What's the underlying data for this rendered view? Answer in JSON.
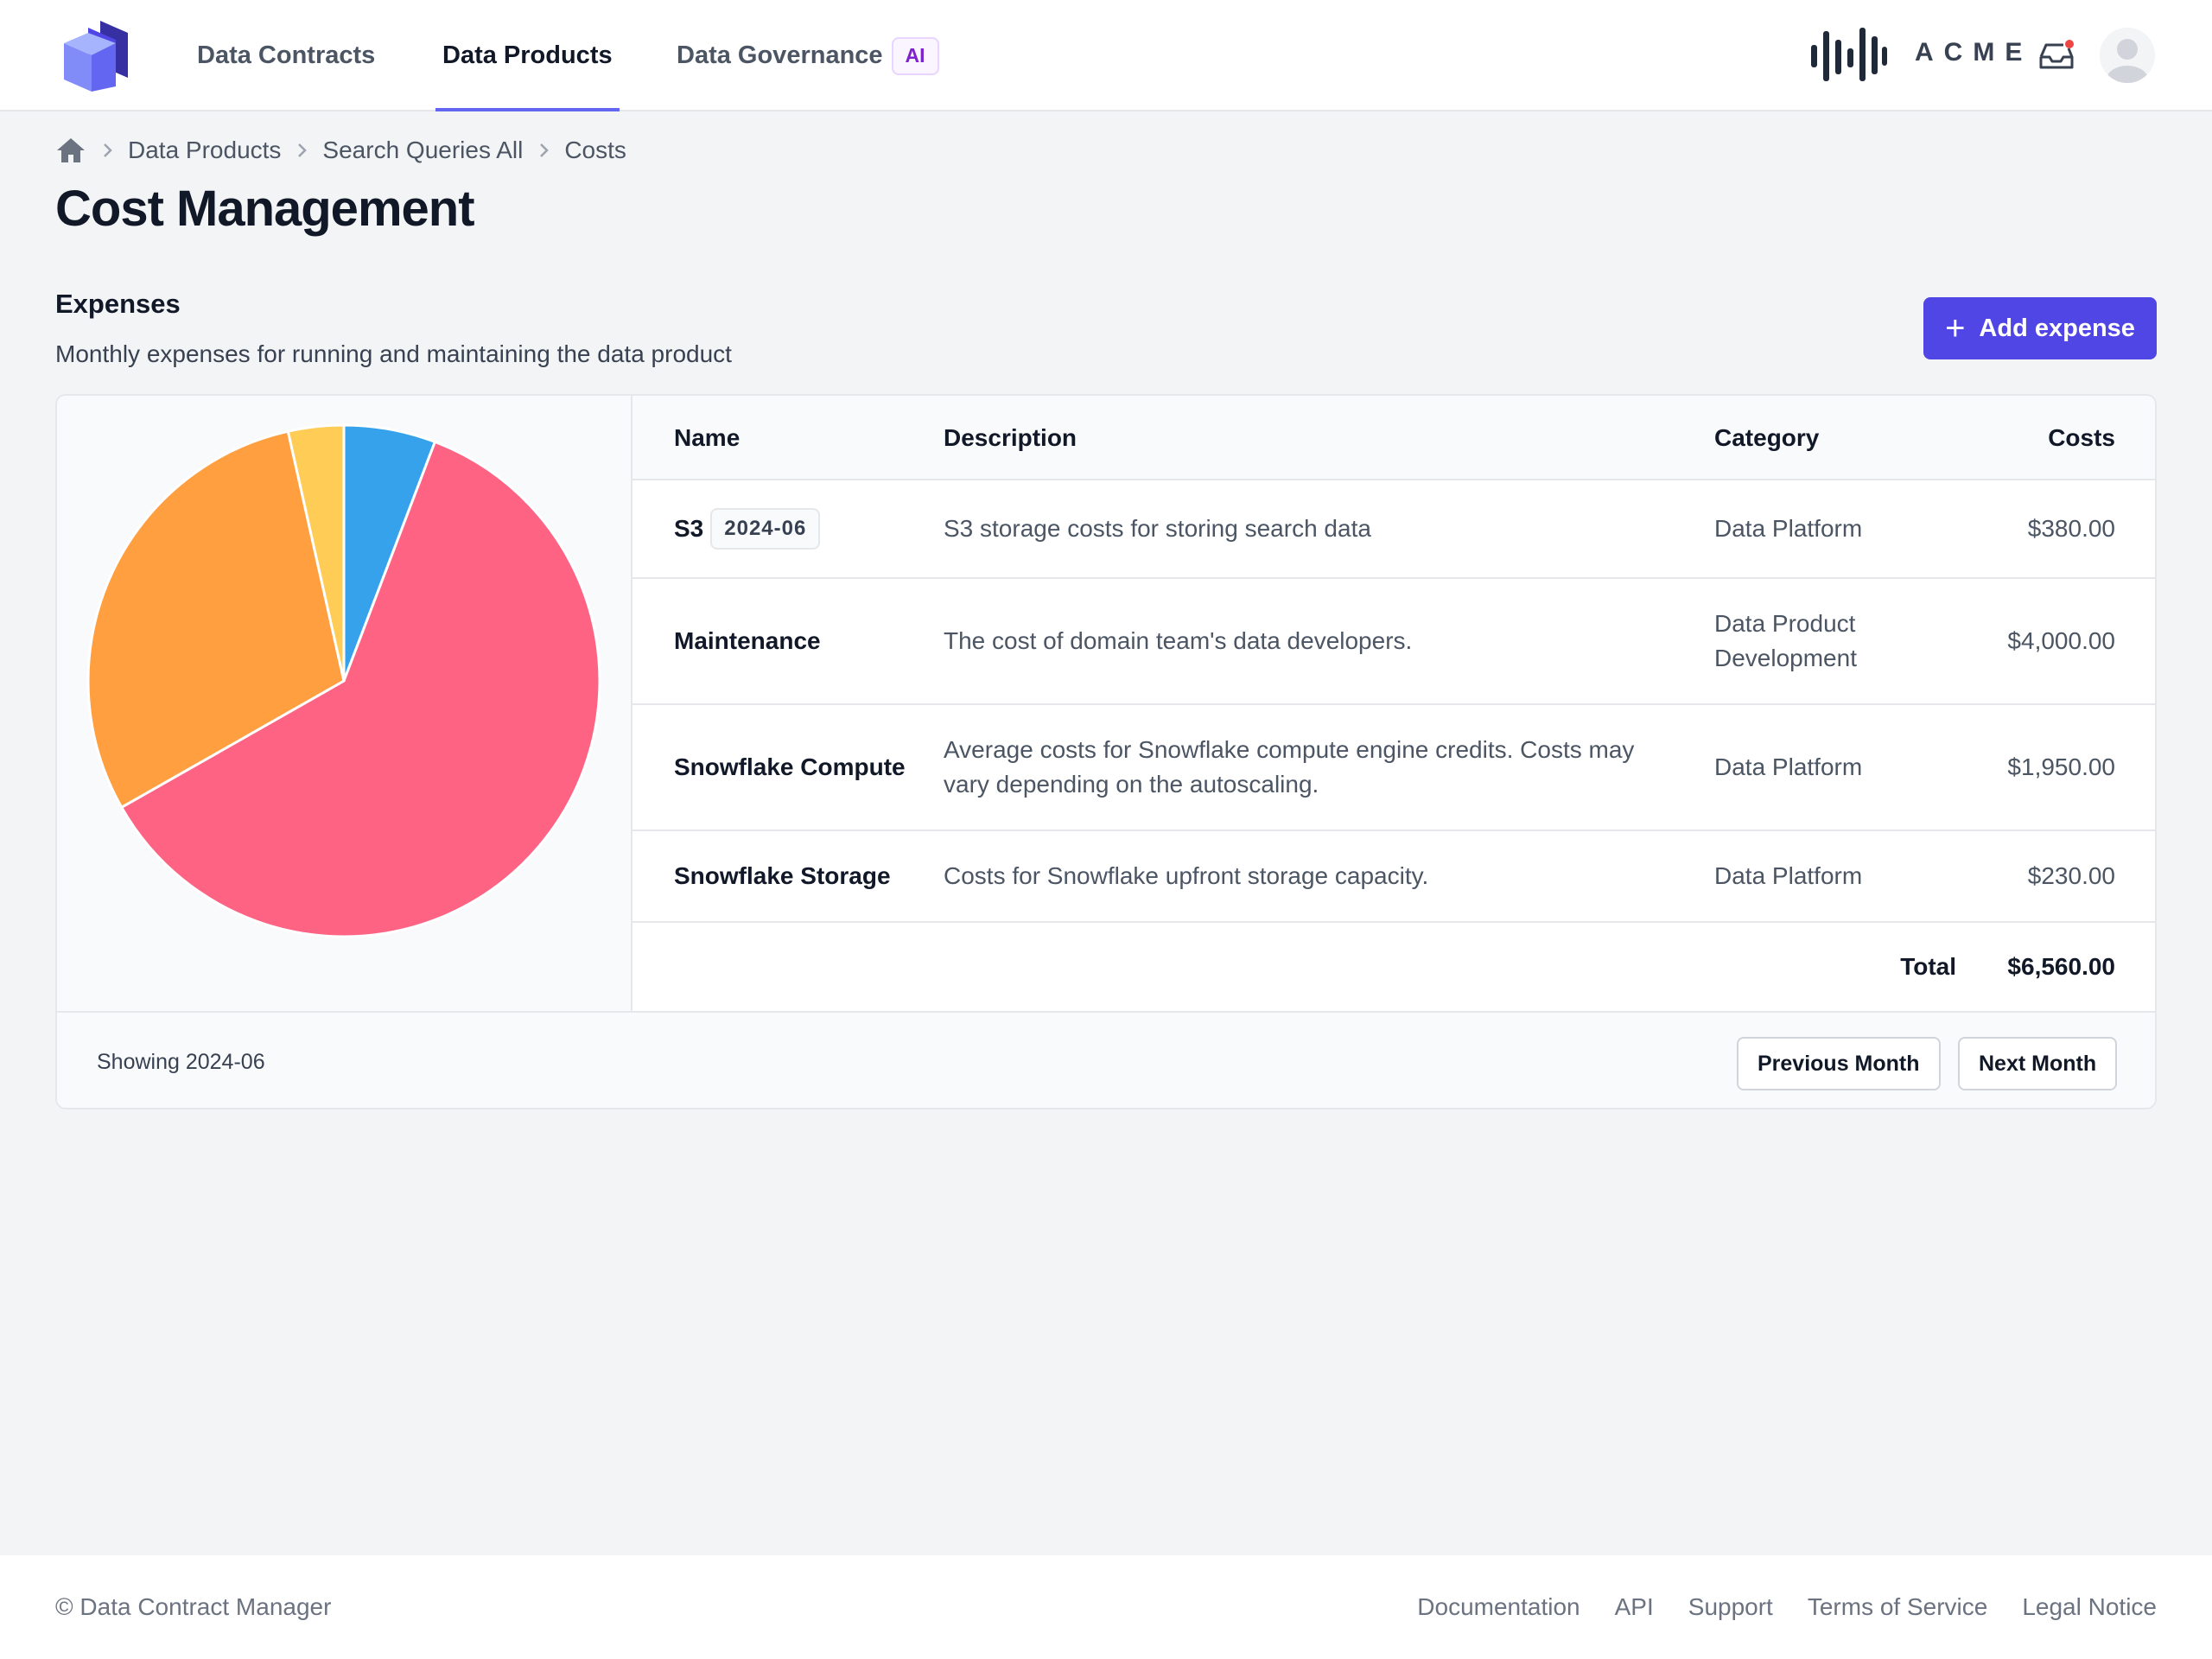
{
  "nav": {
    "tabs": [
      {
        "label": "Data Contracts"
      },
      {
        "label": "Data Products"
      },
      {
        "label": "Data Governance",
        "badge": "AI"
      }
    ],
    "active_tab": "Data Products",
    "org_logo_text": "ACME",
    "icons": [
      "app-logo-icon",
      "acme-logo-icon",
      "inbox-icon",
      "user-avatar-icon"
    ],
    "notification_dot_color": "#ef4444"
  },
  "breadcrumb": {
    "items": [
      "Data Products",
      "Search Queries All",
      "Costs"
    ]
  },
  "page": {
    "title": "Cost Management"
  },
  "expenses": {
    "title": "Expenses",
    "description": "Monthly expenses for running and maintaining the data product",
    "add_label": "Add expense",
    "accent_color": "#4f46e5",
    "table": {
      "headers": {
        "name": "Name",
        "description": "Description",
        "category": "Category",
        "costs": "Costs"
      },
      "rows": [
        {
          "name": "S3",
          "badge": "2024-06",
          "description": "S3 storage costs for storing search data",
          "category": "Data Platform",
          "cost": "$380.00"
        },
        {
          "name": "Maintenance",
          "description": "The cost of domain team's data developers.",
          "category": "Data Product Development",
          "cost": "$4,000.00"
        },
        {
          "name": "Snowflake Compute",
          "description": "Average costs for Snowflake compute engine credits. Costs may vary depending on the autoscaling.",
          "category": "Data Platform",
          "cost": "$1,950.00"
        },
        {
          "name": "Snowflake Storage",
          "description": "Costs for Snowflake upfront storage capacity.",
          "category": "Data Platform",
          "cost": "$230.00"
        }
      ],
      "total_label": "Total",
      "total_value": "$6,560.00"
    },
    "showing": "Showing 2024-06",
    "prev_label": "Previous Month",
    "next_label": "Next Month"
  },
  "chart_data": {
    "type": "pie",
    "categories": [
      "S3",
      "Maintenance",
      "Snowflake Compute",
      "Snowflake Storage"
    ],
    "values": [
      380,
      4000,
      1950,
      230
    ],
    "colors": [
      "#36a2eb",
      "#ff6384",
      "#ff9f40",
      "#ffcd56"
    ],
    "start": "top",
    "direction": "clockwise"
  },
  "footer": {
    "copyright": "© Data Contract Manager",
    "links": [
      "Documentation",
      "API",
      "Support",
      "Terms of Service",
      "Legal Notice"
    ]
  }
}
